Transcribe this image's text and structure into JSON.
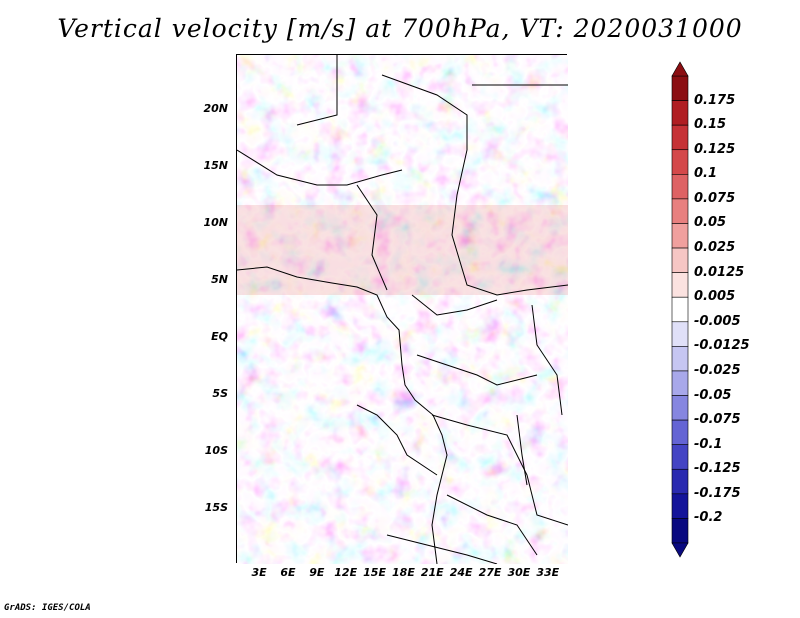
{
  "title": "Vertical velocity [m/s] at 700hPa, VT: 2020031000",
  "credit": "GrADS: IGES/COLA",
  "lat_labels": [
    "20N",
    "15N",
    "10N",
    "5N",
    "EQ",
    "5S",
    "10S",
    "15S"
  ],
  "lat_values": [
    20,
    15,
    10,
    5,
    0,
    -5,
    -10,
    -15
  ],
  "lon_labels": [
    "3E",
    "6E",
    "9E",
    "12E",
    "15E",
    "18E",
    "21E",
    "24E",
    "27E",
    "30E",
    "33E"
  ],
  "lon_values": [
    3,
    6,
    9,
    12,
    15,
    18,
    21,
    24,
    27,
    30,
    33
  ],
  "map_extent": {
    "lon_min": 0.6,
    "lon_max": 35.0,
    "lat_min": -19.8,
    "lat_max": 24.8
  },
  "colorbar": {
    "labels": [
      "0.175",
      "0.15",
      "0.125",
      "0.1",
      "0.075",
      "0.05",
      "0.025",
      "0.0125",
      "0.005",
      "-0.005",
      "-0.0125",
      "-0.025",
      "-0.05",
      "-0.075",
      "-0.1",
      "-0.125",
      "-0.175",
      "-0.2"
    ],
    "colors": [
      "#8b0e12",
      "#b01e22",
      "#c63236",
      "#d4484a",
      "#de6264",
      "#e8807f",
      "#f0a09e",
      "#f6c6c4",
      "#fbe2e0",
      "#ffffff",
      "#e0e0f8",
      "#c6c6f2",
      "#a8a8ea",
      "#8686e0",
      "#6464d4",
      "#4444c4",
      "#2a2ab0",
      "#14149a",
      "#0a0a80"
    ]
  }
}
